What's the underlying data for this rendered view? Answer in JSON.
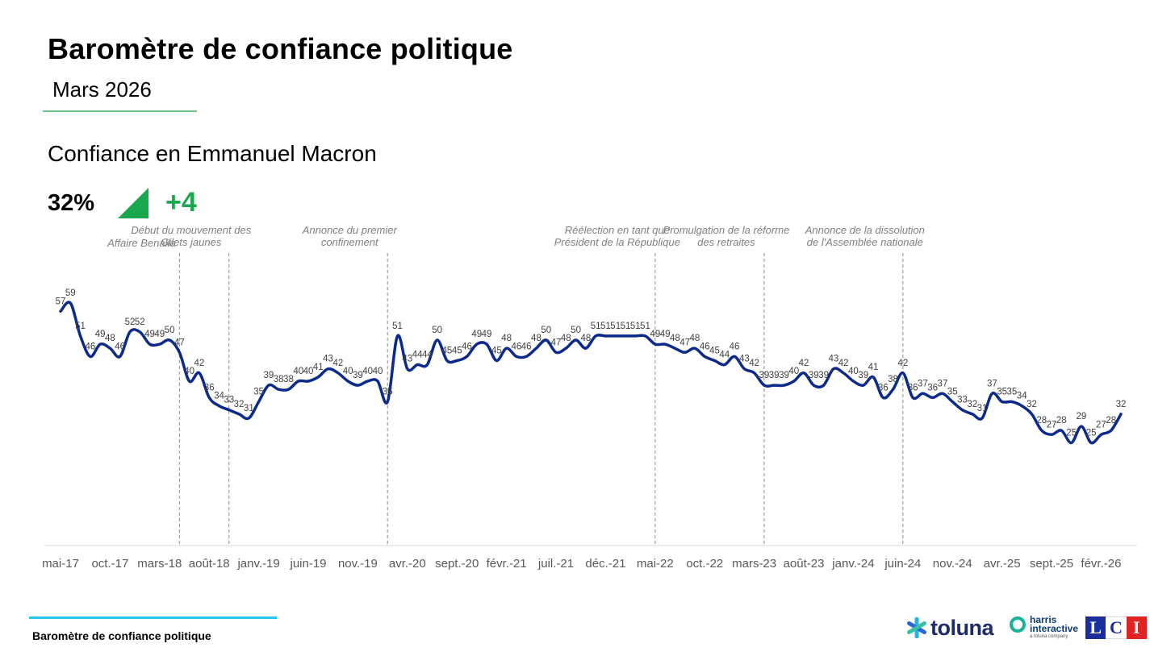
{
  "header": {
    "title": "Baromètre de confiance politique",
    "subtitle": "Mars 2026",
    "chart_title": "Confiance en Emmanuel Macron",
    "kpi_value": "32%",
    "kpi_change": "+4",
    "kpi_arrow_icon": "down-right-triangle-icon"
  },
  "footer": {
    "text": "Baromètre de confiance politique",
    "logos": [
      "toluna",
      "harris interactive",
      "a toluna company",
      "LCI"
    ]
  },
  "colors": {
    "line": "#0b2a8c",
    "green_accent": "#1aa84f",
    "green_rule": "#6cc583",
    "blue_rule": "#26c4f0",
    "annotation_text": "#808080",
    "value_label": "#404040",
    "lci_blue": "#1b2e9e",
    "lci_white": "#ffffff",
    "lci_red": "#e02424"
  },
  "chart_data": {
    "type": "line",
    "title": "Confiance en Emmanuel Macron",
    "xlabel": "",
    "ylabel": "",
    "ylim": [
      0,
      70
    ],
    "grid": false,
    "values": [
      57,
      59,
      51,
      46,
      49,
      48,
      46,
      52,
      52,
      49,
      49,
      50,
      47,
      40,
      42,
      36,
      34,
      33,
      32,
      31,
      35,
      39,
      38,
      38,
      40,
      40,
      41,
      43,
      42,
      40,
      39,
      40,
      40,
      35,
      51,
      43,
      44,
      44,
      50,
      45,
      45,
      46,
      49,
      49,
      45,
      48,
      46,
      46,
      48,
      50,
      47,
      48,
      50,
      48,
      51,
      51,
      51,
      51,
      51,
      51,
      49,
      49,
      48,
      47,
      48,
      46,
      45,
      44,
      46,
      43,
      42,
      39,
      39,
      39,
      40,
      42,
      39,
      39,
      43,
      42,
      40,
      39,
      41,
      36,
      38,
      42,
      36,
      37,
      36,
      37,
      35,
      33,
      32,
      31,
      37,
      35,
      35,
      34,
      32,
      28,
      27,
      28,
      25,
      29,
      25,
      27,
      28,
      32
    ],
    "tick_labels": [
      "mai-17",
      "oct.-17",
      "mars-18",
      "août-18",
      "janv.-19",
      "juin-19",
      "nov.-19",
      "avr.-20",
      "sept.-20",
      "févr.-21",
      "juil.-21",
      "déc.-21",
      "mai-22",
      "oct.-22",
      "mars-23",
      "août-23",
      "janv.-24",
      "juin-24",
      "nov.-24",
      "avr.-25",
      "sept.-25",
      "févr.-26"
    ],
    "annotations": [
      {
        "label": "Affaire Benalla",
        "index": 12
      },
      {
        "label": "Début du mouvement des Gilets jaunes",
        "index": 17
      },
      {
        "label": "Annonce du premier confinement",
        "index": 33
      },
      {
        "label": "Réélection en tant que Président de la République",
        "index": 60
      },
      {
        "label": "Promulgation de la réforme des retraites",
        "index": 71
      },
      {
        "label": "Annonce de la dissolution de l'Assemblée nationale",
        "index": 85
      }
    ]
  }
}
